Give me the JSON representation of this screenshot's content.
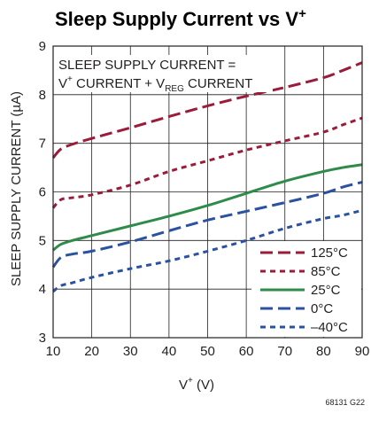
{
  "chart_data": {
    "type": "line",
    "title": "Sleep Supply Current vs V",
    "title_superscript": "+",
    "xlabel": "V",
    "xlabel_superscript": "+",
    "xlabel_unit": " (V)",
    "ylabel": "SLEEP SUPPLY CURRENT (µA)",
    "xlim": [
      10,
      90
    ],
    "ylim": [
      3,
      9
    ],
    "x_ticks": [
      "10",
      "20",
      "30",
      "40",
      "50",
      "60",
      "70",
      "80",
      "90"
    ],
    "y_ticks": [
      "3",
      "4",
      "5",
      "6",
      "7",
      "8",
      "9"
    ],
    "grid": true,
    "legend_position": "bottom-right",
    "annotation": {
      "line1": "SLEEP SUPPLY CURRENT =",
      "line2_a": "V",
      "line2_sup": "+",
      "line2_b": " CURRENT + V",
      "line2_sub": "REG",
      "line2_c": " CURRENT"
    },
    "figure_id": "68131 G22",
    "x": [
      10,
      12,
      15,
      20,
      30,
      40,
      50,
      60,
      70,
      80,
      85,
      90
    ],
    "series": [
      {
        "name": "125°C",
        "color": "#9b1b3a",
        "dash": "long",
        "values": [
          6.7,
          6.88,
          6.98,
          7.1,
          7.32,
          7.55,
          7.77,
          7.97,
          8.15,
          8.35,
          8.5,
          8.66
        ]
      },
      {
        "name": "85°C",
        "color": "#9b1b3a",
        "dash": "short",
        "values": [
          5.67,
          5.84,
          5.88,
          5.94,
          6.14,
          6.42,
          6.64,
          6.86,
          7.05,
          7.23,
          7.38,
          7.52
        ]
      },
      {
        "name": "25°C",
        "color": "#2e8b4a",
        "dash": "solid",
        "values": [
          4.8,
          4.92,
          5.0,
          5.1,
          5.3,
          5.5,
          5.72,
          5.97,
          6.22,
          6.42,
          6.5,
          6.56
        ]
      },
      {
        "name": "0°C",
        "color": "#2a52a0",
        "dash": "long",
        "values": [
          4.45,
          4.65,
          4.72,
          4.78,
          4.97,
          5.2,
          5.42,
          5.6,
          5.78,
          5.97,
          6.1,
          6.2
        ]
      },
      {
        "name": "–40°C",
        "color": "#2a52a0",
        "dash": "short",
        "values": [
          3.95,
          4.07,
          4.13,
          4.24,
          4.42,
          4.58,
          4.78,
          5.0,
          5.25,
          5.45,
          5.52,
          5.62
        ]
      }
    ]
  }
}
